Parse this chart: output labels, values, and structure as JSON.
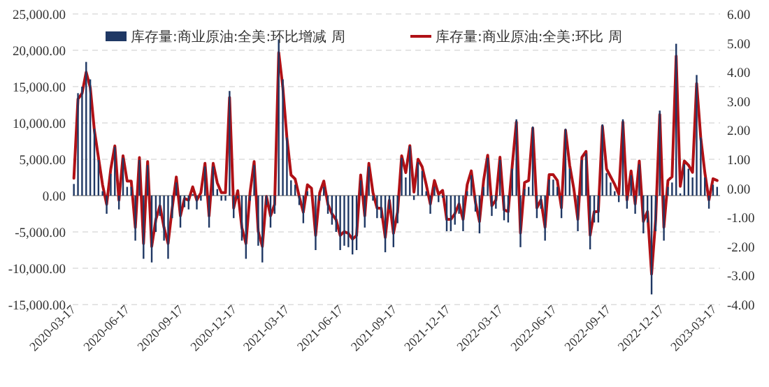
{
  "chart_data": {
    "type": "bar",
    "x": [
      "2020-03-13",
      "2020-03-20",
      "2020-03-27",
      "2020-04-03",
      "2020-04-10",
      "2020-04-17",
      "2020-04-24",
      "2020-05-01",
      "2020-05-08",
      "2020-05-15",
      "2020-05-22",
      "2020-05-29",
      "2020-06-05",
      "2020-06-12",
      "2020-06-19",
      "2020-06-26",
      "2020-07-03",
      "2020-07-10",
      "2020-07-17",
      "2020-07-24",
      "2020-07-31",
      "2020-08-07",
      "2020-08-14",
      "2020-08-21",
      "2020-08-28",
      "2020-09-04",
      "2020-09-11",
      "2020-09-18",
      "2020-09-25",
      "2020-10-02",
      "2020-10-09",
      "2020-10-16",
      "2020-10-23",
      "2020-10-30",
      "2020-11-06",
      "2020-11-13",
      "2020-11-20",
      "2020-11-27",
      "2020-12-04",
      "2020-12-11",
      "2020-12-18",
      "2020-12-25",
      "2021-01-01",
      "2021-01-08",
      "2021-01-15",
      "2021-01-22",
      "2021-01-29",
      "2021-02-05",
      "2021-02-12",
      "2021-02-19",
      "2021-02-26",
      "2021-03-05",
      "2021-03-12",
      "2021-03-19",
      "2021-03-26",
      "2021-04-02",
      "2021-04-09",
      "2021-04-16",
      "2021-04-23",
      "2021-04-30",
      "2021-05-07",
      "2021-05-14",
      "2021-05-21",
      "2021-05-28",
      "2021-06-04",
      "2021-06-11",
      "2021-06-18",
      "2021-06-25",
      "2021-07-02",
      "2021-07-09",
      "2021-07-16",
      "2021-07-23",
      "2021-07-30",
      "2021-08-06",
      "2021-08-13",
      "2021-08-20",
      "2021-08-27",
      "2021-09-03",
      "2021-09-10",
      "2021-09-17",
      "2021-09-24",
      "2021-10-01",
      "2021-10-08",
      "2021-10-15",
      "2021-10-22",
      "2021-10-29",
      "2021-11-05",
      "2021-11-12",
      "2021-11-19",
      "2021-11-26",
      "2021-12-03",
      "2021-12-10",
      "2021-12-17",
      "2021-12-24",
      "2021-12-31",
      "2022-01-07",
      "2022-01-14",
      "2022-01-21",
      "2022-01-28",
      "2022-02-04",
      "2022-02-11",
      "2022-02-18",
      "2022-02-25",
      "2022-03-04",
      "2022-03-11",
      "2022-03-18",
      "2022-03-25",
      "2022-04-01",
      "2022-04-08",
      "2022-04-15",
      "2022-04-22",
      "2022-04-29",
      "2022-05-06",
      "2022-05-13",
      "2022-05-20",
      "2022-05-27",
      "2022-06-03",
      "2022-06-10",
      "2022-06-17",
      "2022-06-24",
      "2022-07-01",
      "2022-07-08",
      "2022-07-15",
      "2022-07-22",
      "2022-07-29",
      "2022-08-05",
      "2022-08-12",
      "2022-08-19",
      "2022-08-26",
      "2022-09-02",
      "2022-09-09",
      "2022-09-16",
      "2022-09-23",
      "2022-09-30",
      "2022-10-07",
      "2022-10-14",
      "2022-10-21",
      "2022-10-28",
      "2022-11-04",
      "2022-11-11",
      "2022-11-18",
      "2022-11-25",
      "2022-12-02",
      "2022-12-09",
      "2022-12-16",
      "2022-12-23",
      "2022-12-30",
      "2023-01-06",
      "2023-01-13",
      "2023-01-20",
      "2023-01-27",
      "2023-02-03",
      "2023-02-10",
      "2023-02-17",
      "2023-02-24",
      "2023-03-03",
      "2023-03-10",
      "2023-03-17"
    ],
    "series": [
      {
        "name": "库存量:商业原油:全美:环比增减 周",
        "color": "#1f3864",
        "values": [
          1600,
          14100,
          15000,
          18400,
          16000,
          9200,
          4900,
          600,
          -2500,
          3000,
          6700,
          -1900,
          5200,
          1200,
          1200,
          -6200,
          4900,
          -8700,
          4200,
          -9200,
          -5000,
          -2800,
          -6200,
          -8700,
          -3100,
          1800,
          -4400,
          -1600,
          -1900,
          200,
          -1900,
          -700,
          4000,
          -4400,
          4000,
          900,
          -700,
          -700,
          14400,
          -3100,
          -400,
          -6200,
          -8700,
          -700,
          4200,
          -6900,
          -9200,
          -1300,
          -4400,
          -2500,
          21500,
          16000,
          8000,
          2100,
          1500,
          -1300,
          -3800,
          600,
          0,
          -7500,
          -700,
          1200,
          -2500,
          -4000,
          -5000,
          -7500,
          -6900,
          -7100,
          -8100,
          -7500,
          2100,
          -4400,
          4000,
          -700,
          -3100,
          -3100,
          -7800,
          -1900,
          -7100,
          -3800,
          5200,
          2500,
          6800,
          -600,
          4600,
          3400,
          600,
          -2500,
          1200,
          -900,
          -300,
          -4900,
          -4900,
          -4000,
          -2500,
          -4900,
          600,
          2800,
          -2200,
          -5200,
          1200,
          5200,
          -2800,
          -1800,
          4900,
          -3400,
          -3700,
          3700,
          10500,
          -7100,
          900,
          1200,
          9500,
          -3100,
          -1800,
          -6200,
          2200,
          2200,
          1200,
          -3100,
          9200,
          3700,
          0,
          -4900,
          4900,
          5800,
          -7400,
          -3700,
          -3700,
          9800,
          3100,
          1800,
          600,
          -900,
          10500,
          -1800,
          2800,
          -2500,
          4300,
          -5200,
          -3700,
          -13600,
          -4900,
          11700,
          -6200,
          1200,
          1800,
          20900,
          300,
          4300,
          3700,
          2500,
          16600,
          8000,
          2500,
          -1800,
          1500,
          1200
        ]
      },
      {
        "name": "库存量:商业原油:全美:环比 周",
        "type": "line",
        "axis": "y2",
        "color": "#b01116",
        "values": [
          0.35,
          3.07,
          3.27,
          4.0,
          3.47,
          2.0,
          1.06,
          0.12,
          -0.55,
          0.66,
          1.46,
          -0.41,
          1.12,
          0.25,
          0.25,
          -1.35,
          1.06,
          -1.9,
          0.92,
          -2.0,
          -1.08,
          -0.6,
          -1.35,
          -1.9,
          -0.68,
          0.39,
          -0.95,
          -0.35,
          -0.41,
          0.05,
          -0.41,
          -0.15,
          0.86,
          -0.95,
          0.86,
          0.19,
          -0.15,
          -0.15,
          3.13,
          -0.68,
          -0.08,
          -1.35,
          -1.9,
          -0.15,
          0.92,
          -1.49,
          -2.0,
          -0.28,
          -0.95,
          -0.55,
          4.67,
          3.47,
          1.73,
          0.46,
          0.32,
          -0.28,
          -0.82,
          0.12,
          0,
          -1.62,
          -0.15,
          0.25,
          -0.55,
          -0.88,
          -1.08,
          -1.62,
          -1.49,
          -1.55,
          -1.75,
          -1.62,
          0.46,
          -0.95,
          0.86,
          -0.15,
          -0.68,
          -0.68,
          -1.69,
          -0.41,
          -1.55,
          -0.82,
          1.12,
          0.54,
          1.47,
          -0.13,
          1.0,
          0.74,
          0.13,
          -0.54,
          0.27,
          -0.2,
          -0.07,
          -1.07,
          -1.07,
          -0.87,
          -0.54,
          -1.07,
          0.13,
          0.6,
          -0.47,
          -1.14,
          0.27,
          1.14,
          -0.6,
          -0.4,
          1.07,
          -0.74,
          -0.8,
          0.8,
          2.28,
          -1.54,
          0.2,
          0.27,
          2.07,
          -0.67,
          -0.4,
          -1.34,
          0.47,
          0.47,
          0.27,
          -0.67,
          2.0,
          0.8,
          0,
          -1.07,
          1.07,
          1.27,
          -1.61,
          -0.8,
          -0.8,
          2.14,
          0.67,
          0.4,
          0.13,
          -0.2,
          2.28,
          -0.4,
          0.6,
          -0.54,
          0.94,
          -1.14,
          -0.8,
          -2.95,
          -1.07,
          2.54,
          -1.34,
          0.27,
          0.4,
          4.55,
          0.07,
          0.94,
          0.8,
          0.55,
          3.61,
          1.74,
          0.54,
          -0.4,
          0.33,
          0.27
        ]
      }
    ],
    "xlim": [
      "2020-03-11",
      "2023-03-22"
    ],
    "xticks": [
      "2020-03-17",
      "2020-06-17",
      "2020-09-17",
      "2020-12-17",
      "2021-03-17",
      "2021-06-17",
      "2021-09-17",
      "2021-12-17",
      "2022-03-17",
      "2022-06-17",
      "2022-09-17",
      "2022-12-17",
      "2023-03-17"
    ],
    "ylim": [
      -15000,
      25000
    ],
    "yticks": [
      {
        "value": -15000,
        "label": "-15,000.00"
      },
      {
        "value": -10000,
        "label": "-10,000.00"
      },
      {
        "value": -5000,
        "label": "-5,000.00"
      },
      {
        "value": 0,
        "label": "0.00"
      },
      {
        "value": 5000,
        "label": "5,000.00"
      },
      {
        "value": 10000,
        "label": "10,000.00"
      },
      {
        "value": 15000,
        "label": "15,000.00"
      },
      {
        "value": 20000,
        "label": "20,000.00"
      },
      {
        "value": 25000,
        "label": "25,000.00"
      }
    ],
    "y2lim": [
      -4,
      6
    ],
    "y2ticks": [
      {
        "value": -4,
        "label": "-4.00"
      },
      {
        "value": -3,
        "label": "-3.00"
      },
      {
        "value": -2,
        "label": "-2.00"
      },
      {
        "value": -1,
        "label": "-1.00"
      },
      {
        "value": 0,
        "label": "0.00"
      },
      {
        "value": 1,
        "label": "1.00"
      },
      {
        "value": 2,
        "label": "2.00"
      },
      {
        "value": 3,
        "label": "3.00"
      },
      {
        "value": 4,
        "label": "4.00"
      },
      {
        "value": 5,
        "label": "5.00"
      },
      {
        "value": 6,
        "label": "6.00"
      }
    ],
    "grid": "y",
    "legend": "top"
  }
}
